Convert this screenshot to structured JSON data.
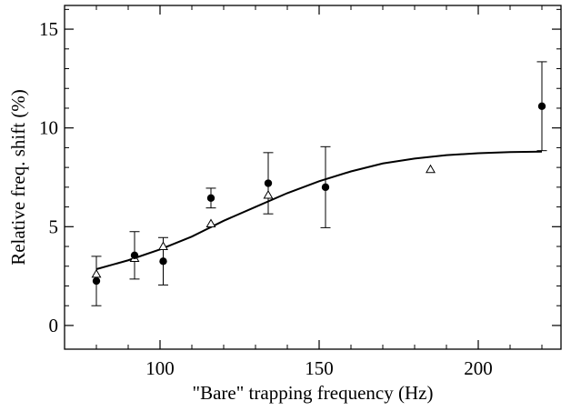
{
  "chart_data": {
    "type": "scatter",
    "xlabel": "\"Bare\" trapping frequency (Hz)",
    "ylabel": "Relative freq. shift (%)",
    "xlim": [
      70,
      226
    ],
    "ylim": [
      -1.2,
      16.2
    ],
    "xticks": [
      100,
      150,
      200
    ],
    "xtick_labels": [
      "100",
      "150",
      "200"
    ],
    "yticks": [
      0,
      5,
      10,
      15
    ],
    "ytick_labels": [
      "0",
      "5",
      "10",
      "15"
    ],
    "grid": false,
    "series": [
      {
        "marker": "filled-circle",
        "points": [
          {
            "x": 80,
            "y": 2.25,
            "err": 1.25
          },
          {
            "x": 92,
            "y": 3.55,
            "err": 1.2
          },
          {
            "x": 101,
            "y": 3.25,
            "err": 1.2
          },
          {
            "x": 116,
            "y": 6.45,
            "err": 0.5
          },
          {
            "x": 134,
            "y": 7.2,
            "err": 1.55
          },
          {
            "x": 152,
            "y": 7.0,
            "err": 2.05
          },
          {
            "x": 220,
            "y": 11.1,
            "err": 2.25
          }
        ]
      },
      {
        "marker": "open-triangle",
        "points": [
          {
            "x": 80,
            "y": 2.6
          },
          {
            "x": 92,
            "y": 3.4
          },
          {
            "x": 101,
            "y": 4.0
          },
          {
            "x": 116,
            "y": 5.15
          },
          {
            "x": 134,
            "y": 6.6
          },
          {
            "x": 185,
            "y": 7.9
          }
        ]
      },
      {
        "marker": "line",
        "points": [
          {
            "x": 80,
            "y": 2.85
          },
          {
            "x": 90,
            "y": 3.3
          },
          {
            "x": 100,
            "y": 3.85
          },
          {
            "x": 110,
            "y": 4.5
          },
          {
            "x": 120,
            "y": 5.3
          },
          {
            "x": 130,
            "y": 6.0
          },
          {
            "x": 140,
            "y": 6.7
          },
          {
            "x": 150,
            "y": 7.3
          },
          {
            "x": 160,
            "y": 7.8
          },
          {
            "x": 170,
            "y": 8.2
          },
          {
            "x": 180,
            "y": 8.45
          },
          {
            "x": 190,
            "y": 8.62
          },
          {
            "x": 200,
            "y": 8.72
          },
          {
            "x": 210,
            "y": 8.78
          },
          {
            "x": 220,
            "y": 8.8
          }
        ]
      }
    ]
  }
}
